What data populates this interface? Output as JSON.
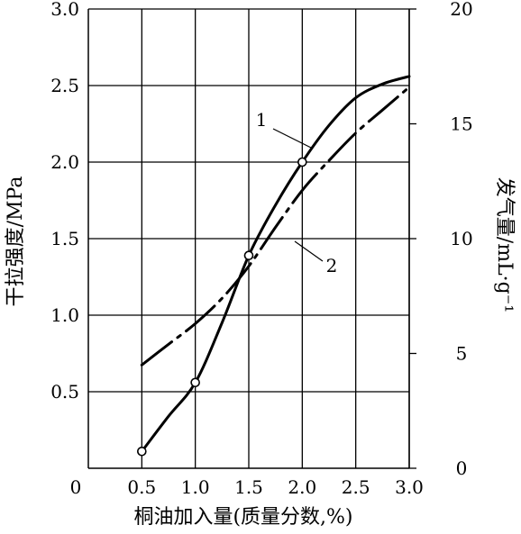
{
  "chart_data": {
    "type": "line",
    "ylabel_left": "干拉强度/MPa",
    "ylabel_right": "发气量/mL·g⁻¹",
    "xlabel": "桐油加入量(质量分数,%)",
    "origin_label": "0",
    "x_ticks": [
      "0.5",
      "1.0",
      "1.5",
      "2.0",
      "2.5",
      "3.0"
    ],
    "y_left_ticks": [
      "0.5",
      "1.0",
      "1.5",
      "2.0",
      "2.5",
      "3.0"
    ],
    "y_right_ticks": [
      "0",
      "5",
      "10",
      "15",
      "20"
    ],
    "xlim": [
      0,
      3.0
    ],
    "ylim_left": [
      0,
      3.0
    ],
    "ylim_right": [
      0,
      20
    ],
    "grid": true,
    "series": [
      {
        "name": "1",
        "axis": "left",
        "style": "solid",
        "markers": [
          {
            "x": 0.5,
            "y": 0.11
          },
          {
            "x": 1.0,
            "y": 0.56
          },
          {
            "x": 1.5,
            "y": 1.39
          },
          {
            "x": 2.0,
            "y": 2.0
          }
        ],
        "curve": [
          {
            "x": 0.5,
            "y": 0.11
          },
          {
            "x": 0.75,
            "y": 0.34
          },
          {
            "x": 1.0,
            "y": 0.56
          },
          {
            "x": 1.25,
            "y": 0.95
          },
          {
            "x": 1.5,
            "y": 1.39
          },
          {
            "x": 1.75,
            "y": 1.72
          },
          {
            "x": 2.0,
            "y": 2.0
          },
          {
            "x": 2.25,
            "y": 2.24
          },
          {
            "x": 2.5,
            "y": 2.42
          },
          {
            "x": 2.75,
            "y": 2.51
          },
          {
            "x": 3.0,
            "y": 2.56
          }
        ]
      },
      {
        "name": "2",
        "axis": "right",
        "style": "dash-dot",
        "curve": [
          {
            "x": 0.5,
            "y": 4.5
          },
          {
            "x": 0.75,
            "y": 5.4
          },
          {
            "x": 1.0,
            "y": 6.3
          },
          {
            "x": 1.25,
            "y": 7.4
          },
          {
            "x": 1.5,
            "y": 8.8
          },
          {
            "x": 1.75,
            "y": 10.5
          },
          {
            "x": 2.0,
            "y": 12.1
          },
          {
            "x": 2.25,
            "y": 13.4
          },
          {
            "x": 2.5,
            "y": 14.6
          },
          {
            "x": 2.75,
            "y": 15.6
          },
          {
            "x": 3.0,
            "y": 16.6
          }
        ]
      }
    ]
  }
}
